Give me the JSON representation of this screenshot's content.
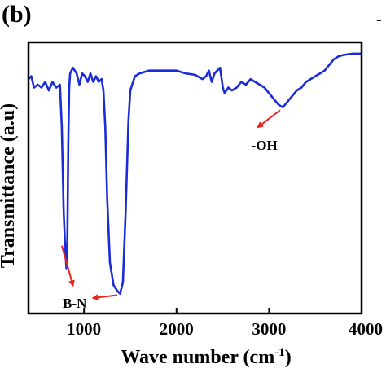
{
  "figure": {
    "panel_label": "(b)",
    "stray_mark": "-"
  },
  "chart_data": {
    "type": "line",
    "title": "",
    "xlabel_main": "Wave number (cm",
    "xlabel_sup": "-1",
    "xlabel_close": ")",
    "ylabel": "Transmittance (a.u)",
    "xlim": [
      400,
      4000
    ],
    "ylim": [
      0,
      100
    ],
    "x_ticks": [
      1000,
      2000,
      3000,
      4000
    ],
    "x_tick_labels": [
      "1000",
      "2000",
      "3000",
      "4000"
    ],
    "grid": false,
    "series": [
      {
        "color": "#1a2bd8",
        "points": [
          [
            400,
            77
          ],
          [
            430,
            78
          ],
          [
            460,
            74
          ],
          [
            500,
            75
          ],
          [
            540,
            74
          ],
          [
            580,
            76
          ],
          [
            620,
            73
          ],
          [
            660,
            76
          ],
          [
            700,
            74
          ],
          [
            740,
            75
          ],
          [
            760,
            60
          ],
          [
            780,
            30
          ],
          [
            800,
            15
          ],
          [
            810,
            10
          ],
          [
            820,
            20
          ],
          [
            830,
            55
          ],
          [
            840,
            74
          ],
          [
            850,
            79
          ],
          [
            880,
            81
          ],
          [
            920,
            79
          ],
          [
            950,
            75
          ],
          [
            980,
            79
          ],
          [
            1010,
            78
          ],
          [
            1040,
            76
          ],
          [
            1070,
            79
          ],
          [
            1100,
            76
          ],
          [
            1130,
            78
          ],
          [
            1160,
            76
          ],
          [
            1190,
            77
          ],
          [
            1210,
            73
          ],
          [
            1230,
            60
          ],
          [
            1250,
            35
          ],
          [
            1280,
            12
          ],
          [
            1320,
            4
          ],
          [
            1360,
            2
          ],
          [
            1390,
            1
          ],
          [
            1420,
            5
          ],
          [
            1450,
            30
          ],
          [
            1480,
            62
          ],
          [
            1500,
            73
          ],
          [
            1550,
            78
          ],
          [
            1600,
            79
          ],
          [
            1700,
            80
          ],
          [
            1800,
            80
          ],
          [
            1900,
            80
          ],
          [
            2000,
            80
          ],
          [
            2100,
            79
          ],
          [
            2200,
            78.5
          ],
          [
            2280,
            77
          ],
          [
            2320,
            78
          ],
          [
            2350,
            80
          ],
          [
            2380,
            76
          ],
          [
            2410,
            79
          ],
          [
            2440,
            80
          ],
          [
            2470,
            81
          ],
          [
            2500,
            74
          ],
          [
            2520,
            72
          ],
          [
            2560,
            74
          ],
          [
            2600,
            73
          ],
          [
            2650,
            74
          ],
          [
            2700,
            76
          ],
          [
            2750,
            75
          ],
          [
            2800,
            77
          ],
          [
            2850,
            76
          ],
          [
            2900,
            75
          ],
          [
            2950,
            74
          ],
          [
            3000,
            72
          ],
          [
            3050,
            70
          ],
          [
            3100,
            68
          ],
          [
            3150,
            67
          ],
          [
            3200,
            69
          ],
          [
            3250,
            71
          ],
          [
            3300,
            73
          ],
          [
            3350,
            74
          ],
          [
            3400,
            76
          ],
          [
            3450,
            77
          ],
          [
            3500,
            78
          ],
          [
            3550,
            79
          ],
          [
            3600,
            80
          ],
          [
            3650,
            82
          ],
          [
            3700,
            84
          ],
          [
            3750,
            85
          ],
          [
            3800,
            85.5
          ],
          [
            3900,
            86
          ],
          [
            4000,
            86
          ]
        ]
      }
    ],
    "annotations": [
      {
        "text": "-OH",
        "text_x": 2950,
        "text_y": 52,
        "arrow_from": [
          3120,
          66
        ],
        "arrow_to": [
          2880,
          60
        ]
      },
      {
        "text": "B-N",
        "text_x": 900,
        "text_y": -4,
        "arrow_from": [
          760,
          18
        ],
        "arrow_to": [
          880,
          4
        ]
      },
      {
        "text": "",
        "text_x": 0,
        "text_y": 0,
        "arrow_from": [
          1360,
          0.5
        ],
        "arrow_to": [
          1100,
          -0.5
        ]
      }
    ]
  }
}
